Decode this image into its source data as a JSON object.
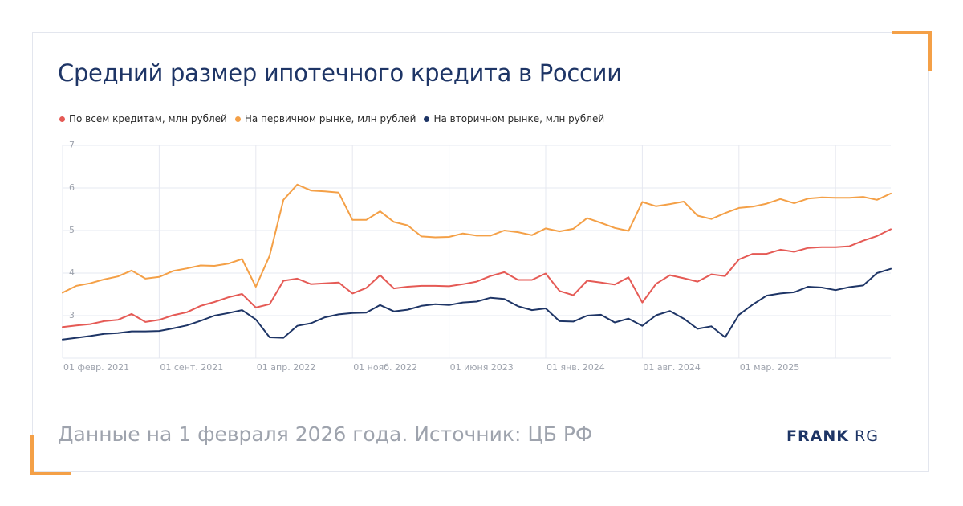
{
  "title": "Средний размер ипотечного кредита в России",
  "footer": "Данные на 1 февраля 2026 года. Источник: ЦБ РФ",
  "logo": {
    "bold": "FRANK",
    "light": "RG"
  },
  "colors": {
    "accent": "#f4a047",
    "title": "#1e3566"
  },
  "chart_data": {
    "type": "line",
    "ylim": [
      2,
      7
    ],
    "yticks": [
      3,
      4,
      5,
      6,
      7
    ],
    "grid": true,
    "legend_position": "top-left",
    "xtick_labels": [
      "01 февр. 2021",
      "01 сент. 2021",
      "01 апр. 2022",
      "01 нояб. 2022",
      "01 июня 2023",
      "01 янв. 2024",
      "01 авг. 2024",
      "01 мар. 2025"
    ],
    "xtick_indices": [
      0,
      7,
      14,
      21,
      28,
      35,
      42,
      49
    ],
    "x_count": 61,
    "series": [
      {
        "name": "По всем кредитам, млн рублей",
        "color": "#e55a55",
        "values": [
          2.73,
          2.77,
          2.8,
          2.87,
          2.9,
          3.04,
          2.85,
          2.9,
          3.01,
          3.08,
          3.23,
          3.32,
          3.43,
          3.51,
          3.19,
          3.27,
          3.82,
          3.87,
          3.74,
          3.76,
          3.78,
          3.52,
          3.65,
          3.95,
          3.64,
          3.68,
          3.7,
          3.7,
          3.69,
          3.74,
          3.8,
          3.93,
          4.02,
          3.84,
          3.84,
          3.99,
          3.58,
          3.48,
          3.82,
          3.78,
          3.73,
          3.9,
          3.31,
          3.75,
          3.95,
          3.88,
          3.8,
          3.97,
          3.93,
          4.32,
          4.45,
          4.45,
          4.55,
          4.5,
          4.59,
          4.61,
          4.61,
          4.63,
          4.76,
          4.87,
          5.03
        ]
      },
      {
        "name": "На первичном рынке, млн рублей",
        "color": "#f4a047",
        "values": [
          3.54,
          3.7,
          3.76,
          3.85,
          3.92,
          4.06,
          3.87,
          3.91,
          4.05,
          4.11,
          4.18,
          4.17,
          4.22,
          4.33,
          3.68,
          4.41,
          5.72,
          6.08,
          5.94,
          5.92,
          5.89,
          5.25,
          5.25,
          5.45,
          5.2,
          5.12,
          4.86,
          4.84,
          4.85,
          4.93,
          4.88,
          4.88,
          5.0,
          4.96,
          4.89,
          5.05,
          4.98,
          5.04,
          5.29,
          5.18,
          5.06,
          4.99,
          5.67,
          5.57,
          5.62,
          5.68,
          5.35,
          5.27,
          5.41,
          5.53,
          5.56,
          5.63,
          5.74,
          5.64,
          5.75,
          5.78,
          5.77,
          5.77,
          5.79,
          5.72,
          5.87
        ]
      },
      {
        "name": "На вторичном рынке, млн рублей",
        "color": "#1e3566",
        "values": [
          2.44,
          2.48,
          2.52,
          2.57,
          2.59,
          2.63,
          2.63,
          2.64,
          2.7,
          2.77,
          2.88,
          3.0,
          3.06,
          3.13,
          2.91,
          2.49,
          2.48,
          2.76,
          2.82,
          2.96,
          3.03,
          3.06,
          3.07,
          3.25,
          3.1,
          3.14,
          3.23,
          3.27,
          3.25,
          3.31,
          3.33,
          3.42,
          3.39,
          3.22,
          3.13,
          3.17,
          2.87,
          2.86,
          3.0,
          3.02,
          2.84,
          2.93,
          2.76,
          3.01,
          3.11,
          2.93,
          2.69,
          2.75,
          2.49,
          3.02,
          3.26,
          3.47,
          3.52,
          3.55,
          3.68,
          3.66,
          3.6,
          3.67,
          3.71,
          4.0,
          4.1
        ]
      }
    ]
  }
}
